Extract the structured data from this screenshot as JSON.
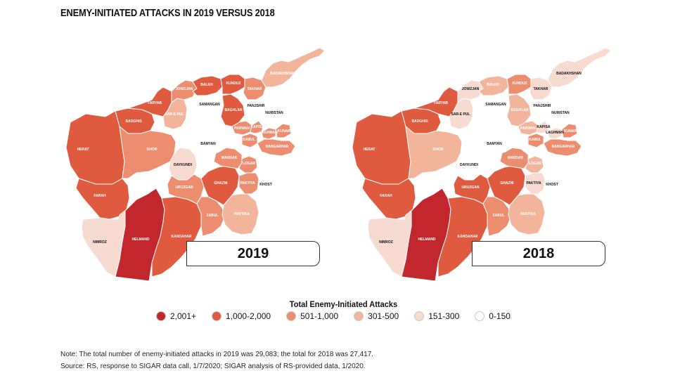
{
  "title": "ENEMY-INITIATED ATTACKS IN 2019 VERSUS 2018",
  "legend": {
    "title": "Total Enemy-Initiated Attacks",
    "items": [
      {
        "label": "2,001+",
        "color": "#c1272d"
      },
      {
        "label": "1,000-2,000",
        "color": "#e05a3f"
      },
      {
        "label": "501-1,000",
        "color": "#ec8d70"
      },
      {
        "label": "301-500",
        "color": "#f2b49b"
      },
      {
        "label": "151-300",
        "color": "#f7dbd0"
      },
      {
        "label": "0-150",
        "color": "#ffffff"
      }
    ]
  },
  "maps": [
    {
      "year": "2019",
      "provinces": {
        "HERAT": "1,000-2,000",
        "FARAH": "1,000-2,000",
        "NIMROZ": "151-300",
        "HELMAND": "2,001+",
        "KANDAHAR": "1,000-2,000",
        "BADGHIS": "1,000-2,000",
        "FARYAB": "1,000-2,000",
        "GHOR": "501-1,000",
        "DAYKUNDI": "151-300",
        "URUZGAN": "501-1,000",
        "ZABUL": "501-1,000",
        "GHAZNI": "1,000-2,000",
        "PAKTIKA": "301-500",
        "KHOST": "0-150",
        "PAKTIYA": "501-1,000",
        "LOGAR": "501-1,000",
        "WARDAK": "501-1,000",
        "BAMYAN": "0-150",
        "SAR-E PUL": "301-500",
        "JOWZJAN": "501-1,000",
        "BALKH": "1,000-2,000",
        "SAMANGAN": "0-150",
        "BAGHLAN": "1,000-2,000",
        "KUNDUZ": "1,000-2,000",
        "TAKHAR": "501-1,000",
        "BADAKHSHAN": "301-500",
        "PANJSHIR": "0-150",
        "NURISTAN": "0-150",
        "PARWAN": "501-1,000",
        "KAPISA": "501-1,000",
        "KABUL": "501-1,000",
        "LAGHMAN": "501-1,000",
        "KUNAR": "501-1,000",
        "NANGARHAR": "501-1,000"
      }
    },
    {
      "year": "2018",
      "provinces": {
        "HERAT": "1,000-2,000",
        "FARAH": "1,000-2,000",
        "NIMROZ": "151-300",
        "HELMAND": "2,001+",
        "KANDAHAR": "1,000-2,000",
        "BADGHIS": "1,000-2,000",
        "FARYAB": "1,000-2,000",
        "GHOR": "301-500",
        "DAYKUNDI": "0-150",
        "URUZGAN": "1,000-2,000",
        "ZABUL": "501-1,000",
        "GHAZNI": "1,000-2,000",
        "PAKTIKA": "301-500",
        "KHOST": "0-150",
        "PAKTIYA": "151-300",
        "LOGAR": "301-500",
        "WARDAK": "501-1,000",
        "BAMYAN": "0-150",
        "SAR-E PUL": "151-300",
        "JOWZJAN": "151-300",
        "BALKH": "301-500",
        "SAMANGAN": "0-150",
        "BAGHLAN": "301-500",
        "KUNDUZ": "501-1,000",
        "TAKHAR": "151-300",
        "BADAKHSHAN": "151-300",
        "PANJSHIR": "0-150",
        "NURISTAN": "0-150",
        "PARWAN": "301-500",
        "KAPISA": "151-300",
        "KABUL": "501-1,000",
        "LAGHMAN": "151-300",
        "KUNAR": "501-1,000",
        "NANGARHAR": "501-1,000"
      }
    }
  ],
  "note": "Note: The total number of enemy-initiated attacks in 2019 was 29,083; the total for 2018 was 27,417.",
  "source": "Source: RS, response to SIGAR data call, 1/7/2020; SIGAR analysis of RS-provided data, 1/2020."
}
